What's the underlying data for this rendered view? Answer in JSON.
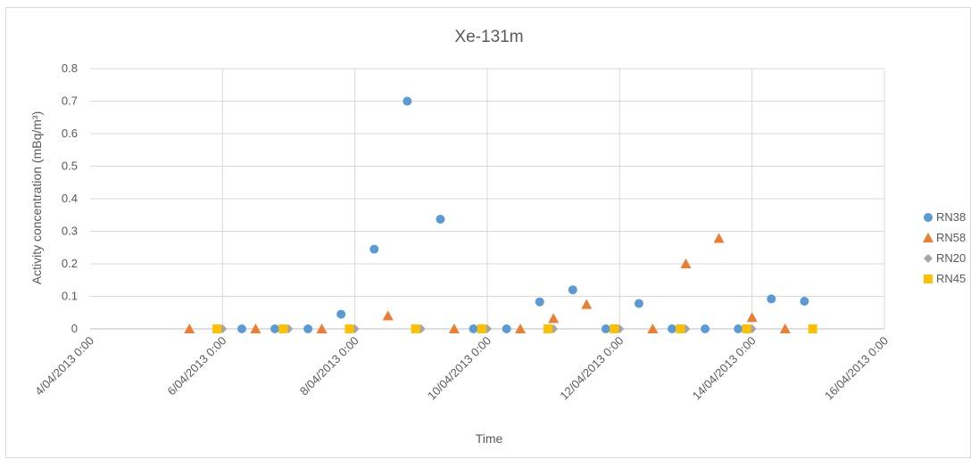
{
  "chart_data": {
    "type": "scatter",
    "title": "Xe-131m",
    "xlabel": "Time",
    "ylabel": "Activity concentration (mBq/m³)",
    "ylim": [
      0,
      0.8
    ],
    "y_ticks": [
      "0",
      "0.1",
      "0.2",
      "0.3",
      "0.4",
      "0.5",
      "0.6",
      "0.7",
      "0.8"
    ],
    "x_ticks": [
      "4/04/2013 0:00",
      "6/04/2013 0:00",
      "8/04/2013 0:00",
      "10/04/2013 0:00",
      "12/04/2013 0:00",
      "14/04/2013 0:00",
      "16/04/2013 0:00"
    ],
    "xlim": [
      "2013-04-04T00:00",
      "2013-04-16T00:00"
    ],
    "grid": true,
    "legend_position": "right",
    "series": [
      {
        "name": "RN38",
        "marker": "circle",
        "color": "#5b9bd5",
        "points": [
          {
            "x": "2013-04-05T22:00",
            "y": 0
          },
          {
            "x": "2013-04-06T07:00",
            "y": 0
          },
          {
            "x": "2013-04-06T19:00",
            "y": 0
          },
          {
            "x": "2013-04-07T07:00",
            "y": 0
          },
          {
            "x": "2013-04-07T19:00",
            "y": 0.045
          },
          {
            "x": "2013-04-08T07:00",
            "y": 0.245
          },
          {
            "x": "2013-04-08T19:00",
            "y": 0.7
          },
          {
            "x": "2013-04-09T07:00",
            "y": 0.337
          },
          {
            "x": "2013-04-09T19:00",
            "y": 0
          },
          {
            "x": "2013-04-10T07:00",
            "y": 0
          },
          {
            "x": "2013-04-10T19:00",
            "y": 0.083
          },
          {
            "x": "2013-04-11T07:00",
            "y": 0.12
          },
          {
            "x": "2013-04-11T19:00",
            "y": 0
          },
          {
            "x": "2013-04-12T07:00",
            "y": 0.078
          },
          {
            "x": "2013-04-12T19:00",
            "y": 0
          },
          {
            "x": "2013-04-13T07:00",
            "y": 0
          },
          {
            "x": "2013-04-13T19:00",
            "y": 0
          },
          {
            "x": "2013-04-14T07:00",
            "y": 0.092
          },
          {
            "x": "2013-04-14T19:00",
            "y": 0.085
          }
        ]
      },
      {
        "name": "RN58",
        "marker": "triangle",
        "color": "#ed7d31",
        "points": [
          {
            "x": "2013-04-05T12:00",
            "y": 0
          },
          {
            "x": "2013-04-06T12:00",
            "y": 0
          },
          {
            "x": "2013-04-07T12:00",
            "y": 0
          },
          {
            "x": "2013-04-08T12:00",
            "y": 0.04
          },
          {
            "x": "2013-04-09T12:00",
            "y": 0
          },
          {
            "x": "2013-04-10T12:00",
            "y": 0
          },
          {
            "x": "2013-04-11T00:00",
            "y": 0.032
          },
          {
            "x": "2013-04-11T12:00",
            "y": 0.075
          },
          {
            "x": "2013-04-12T12:00",
            "y": 0
          },
          {
            "x": "2013-04-13T00:00",
            "y": 0.2
          },
          {
            "x": "2013-04-13T12:00",
            "y": 0.278
          },
          {
            "x": "2013-04-14T00:00",
            "y": 0.035
          },
          {
            "x": "2013-04-14T12:00",
            "y": 0
          }
        ]
      },
      {
        "name": "RN20",
        "marker": "diamond",
        "color": "#a5a5a5",
        "points": [
          {
            "x": "2013-04-06T00:00",
            "y": 0
          },
          {
            "x": "2013-04-07T00:00",
            "y": 0
          },
          {
            "x": "2013-04-08T00:00",
            "y": 0
          },
          {
            "x": "2013-04-09T00:00",
            "y": 0
          },
          {
            "x": "2013-04-10T00:00",
            "y": 0
          },
          {
            "x": "2013-04-11T00:00",
            "y": 0
          },
          {
            "x": "2013-04-12T00:00",
            "y": 0
          },
          {
            "x": "2013-04-13T00:00",
            "y": 0
          },
          {
            "x": "2013-04-14T00:00",
            "y": 0
          }
        ]
      },
      {
        "name": "RN45",
        "marker": "square",
        "color": "#ffc000",
        "points": [
          {
            "x": "2013-04-05T22:00",
            "y": 0
          },
          {
            "x": "2013-04-06T22:00",
            "y": 0
          },
          {
            "x": "2013-04-07T22:00",
            "y": 0
          },
          {
            "x": "2013-04-08T22:00",
            "y": 0
          },
          {
            "x": "2013-04-09T22:00",
            "y": 0
          },
          {
            "x": "2013-04-10T22:00",
            "y": 0
          },
          {
            "x": "2013-04-11T22:00",
            "y": 0
          },
          {
            "x": "2013-04-12T22:00",
            "y": 0
          },
          {
            "x": "2013-04-13T22:00",
            "y": 0
          },
          {
            "x": "2013-04-14T22:00",
            "y": 0
          }
        ]
      }
    ]
  }
}
